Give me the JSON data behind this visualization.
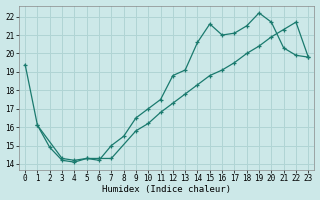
{
  "xlabel": "Humidex (Indice chaleur)",
  "background_color": "#cce8e8",
  "grid_color": "#b0d4d4",
  "line_color": "#1a7a6e",
  "xlim": [
    -0.5,
    23.5
  ],
  "ylim": [
    13.7,
    22.6
  ],
  "xticks": [
    0,
    1,
    2,
    3,
    4,
    5,
    6,
    7,
    8,
    9,
    10,
    11,
    12,
    13,
    14,
    15,
    16,
    17,
    18,
    19,
    20,
    21,
    22,
    23
  ],
  "yticks": [
    14,
    15,
    16,
    17,
    18,
    19,
    20,
    21,
    22
  ],
  "series1_x": [
    0,
    1,
    2,
    3,
    4,
    5,
    6,
    7,
    8,
    9,
    10,
    11,
    12,
    13,
    14,
    15,
    16,
    17,
    18,
    19,
    20,
    21,
    22,
    23
  ],
  "series1_y": [
    19.4,
    16.1,
    14.9,
    14.2,
    14.1,
    14.3,
    14.2,
    15.0,
    15.5,
    16.5,
    17.0,
    17.5,
    18.8,
    19.1,
    20.6,
    21.6,
    21.0,
    21.1,
    21.5,
    22.2,
    21.7,
    20.3,
    19.9,
    19.8
  ],
  "series2_x": [
    1,
    3,
    4,
    5,
    6,
    7,
    9,
    10,
    11,
    12,
    13,
    14,
    15,
    16,
    17,
    18,
    19,
    20,
    21,
    22,
    23
  ],
  "series2_y": [
    16.1,
    14.3,
    14.2,
    14.3,
    14.3,
    14.3,
    15.8,
    16.2,
    16.8,
    17.3,
    17.8,
    18.3,
    18.8,
    19.1,
    19.5,
    20.0,
    20.4,
    20.9,
    21.3,
    21.7,
    19.8
  ]
}
